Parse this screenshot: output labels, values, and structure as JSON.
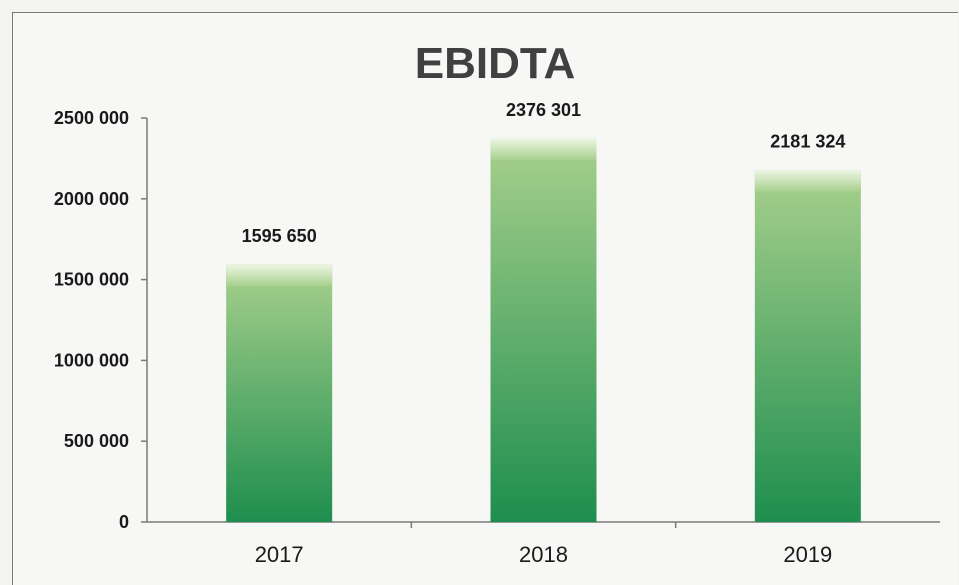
{
  "chart_data": {
    "type": "bar",
    "title": "EBIDTA",
    "categories": [
      "2017",
      "2018",
      "2019"
    ],
    "values": [
      1595650,
      2376301,
      2181324
    ],
    "data_labels": [
      "1595 650",
      "2376 301",
      "2181 324"
    ],
    "ylim": [
      0,
      2500000
    ],
    "yticks": [
      {
        "value": 0,
        "label": "0"
      },
      {
        "value": 500000,
        "label": "500 000"
      },
      {
        "value": 1000000,
        "label": "1000 000"
      },
      {
        "value": 1500000,
        "label": "1500 000"
      },
      {
        "value": 2000000,
        "label": "2000 000"
      },
      {
        "value": 2500000,
        "label": "2500 000"
      }
    ],
    "xlabel": "",
    "ylabel": "",
    "grid": false,
    "legend": "none",
    "colors": {
      "bar_top": "#a8d08d",
      "bar_bottom": "#1e8e4e",
      "highlight": "#eef7e6"
    }
  }
}
